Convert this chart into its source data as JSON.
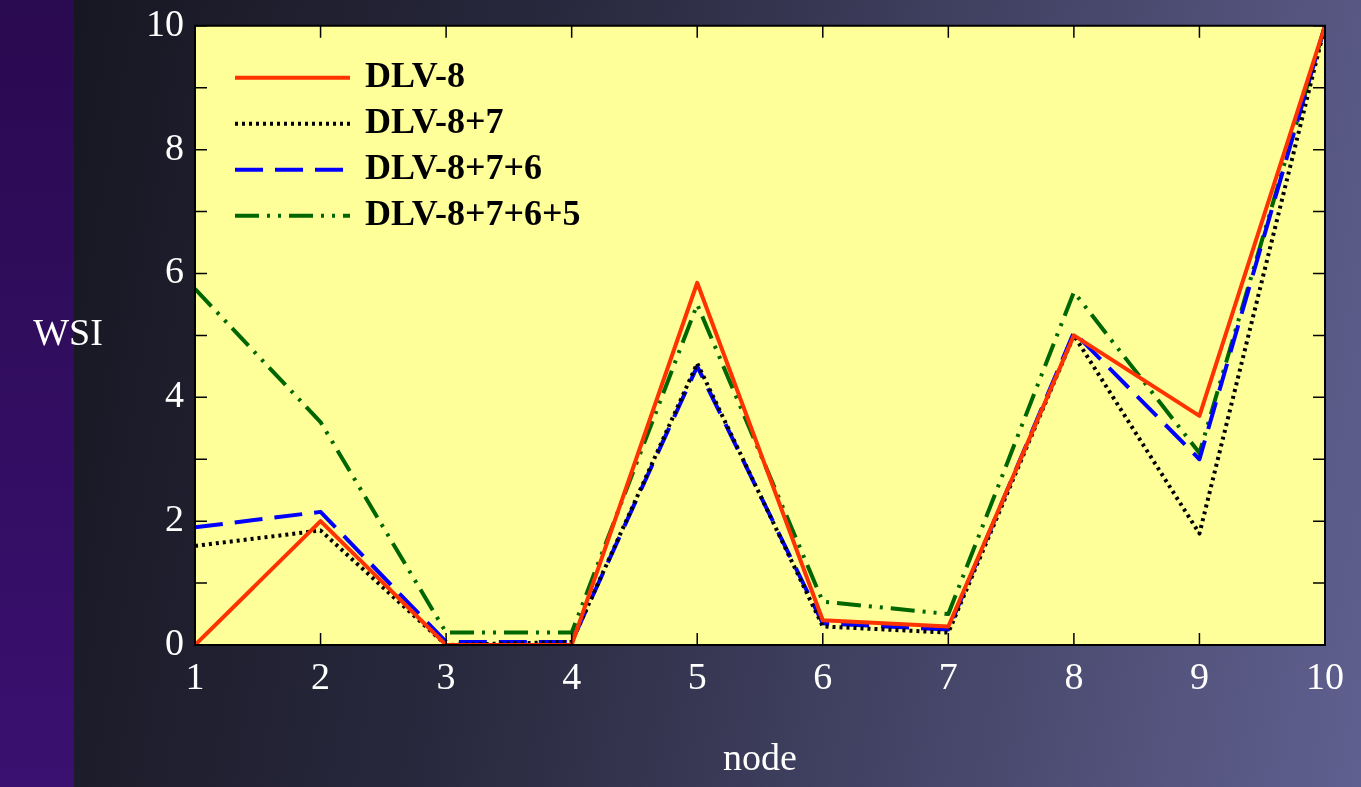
{
  "chart_data": {
    "type": "line",
    "xlabel": "node",
    "ylabel": "WSI",
    "x": [
      1,
      2,
      3,
      4,
      5,
      6,
      7,
      8,
      9,
      10
    ],
    "xlim": [
      1,
      10
    ],
    "xticks": [
      1,
      2,
      3,
      4,
      5,
      6,
      7,
      8,
      9,
      10
    ],
    "ylim": [
      0,
      10
    ],
    "yticks": [
      0,
      {
        "value": 1,
        "label": null
      },
      2,
      {
        "value": 3,
        "label": null
      },
      4,
      {
        "value": 5,
        "label": null
      },
      6,
      {
        "value": 7,
        "label": null
      },
      8,
      {
        "value": 9,
        "label": null
      },
      10
    ],
    "grid": false,
    "legend": "top left",
    "marker": "none",
    "series": [
      {
        "name": "DLV-8",
        "color": "#ff3300",
        "line_style": "solid",
        "values": [
          0,
          2.0,
          0,
          0,
          5.85,
          0.4,
          0.3,
          5.0,
          3.7,
          10
        ]
      },
      {
        "name": "DLV-8+7",
        "color": "#000000",
        "line_style": "dotted",
        "values": [
          1.6,
          1.85,
          0,
          0.05,
          4.55,
          0.3,
          0.2,
          5.0,
          1.8,
          10
        ]
      },
      {
        "name": "DLV-8+7+6",
        "color": "#0000ff",
        "line_style": "dashed",
        "values": [
          1.9,
          2.15,
          0.05,
          0.05,
          4.5,
          0.35,
          0.25,
          5.05,
          3.0,
          10
        ]
      },
      {
        "name": "DLV-8+7+6+5",
        "color": "#006600",
        "line_style": "dashdotdot",
        "values": [
          5.75,
          3.6,
          0.2,
          0.2,
          5.5,
          0.7,
          0.5,
          5.7,
          3.1,
          10
        ]
      }
    ]
  }
}
